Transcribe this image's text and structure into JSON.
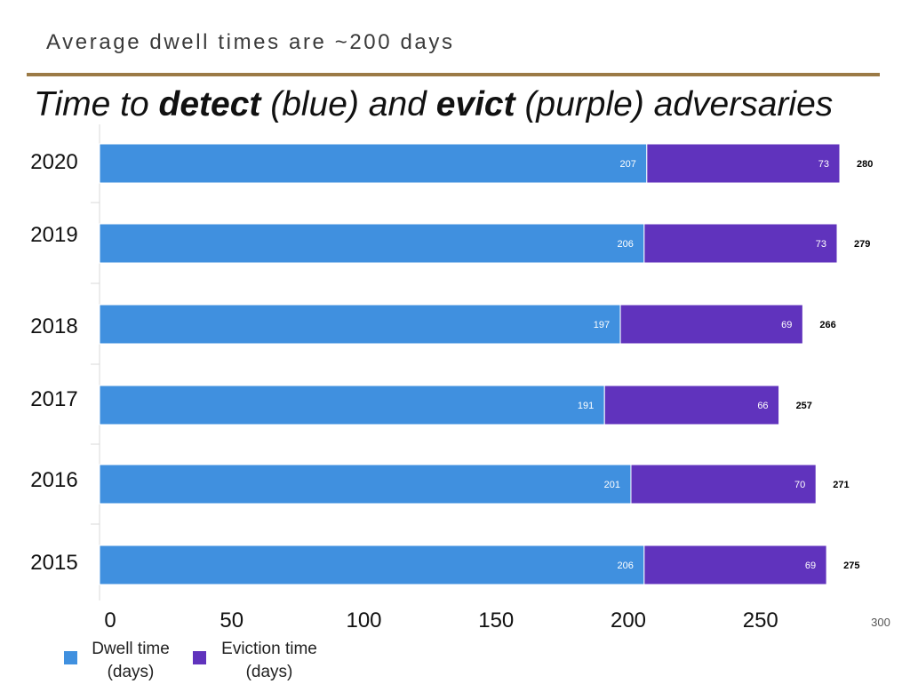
{
  "header": {
    "title": "Average dwell times are ~200 days"
  },
  "heading": {
    "part1": "Time to ",
    "detect": "detect",
    "part2": " (blue) and ",
    "evict": "evict",
    "part3": " (purple) adversaries"
  },
  "colors": {
    "dwell": "#4090df",
    "eviction": "#6033bd"
  },
  "chart_data": {
    "type": "bar",
    "orientation": "horizontal",
    "stacked": true,
    "categories": [
      "2020",
      "2019",
      "2018",
      "2017",
      "2016",
      "2015"
    ],
    "series": [
      {
        "name": "Dwell time (days)",
        "values": [
          207,
          206,
          197,
          191,
          201,
          206
        ]
      },
      {
        "name": "Eviction time (days)",
        "values": [
          73,
          73,
          69,
          66,
          70,
          69
        ]
      }
    ],
    "totals": [
      280,
      279,
      266,
      257,
      271,
      275
    ],
    "xticks": [
      "0",
      "50",
      "100",
      "150",
      "200",
      "250",
      "300"
    ],
    "xlim": [
      0,
      300
    ],
    "grid": false,
    "legend": "bottom-left"
  },
  "legend": {
    "dwell_line1": "Dwell time",
    "dwell_line2": "(days)",
    "evict_line1": "Eviction time",
    "evict_line2": "(days)"
  }
}
